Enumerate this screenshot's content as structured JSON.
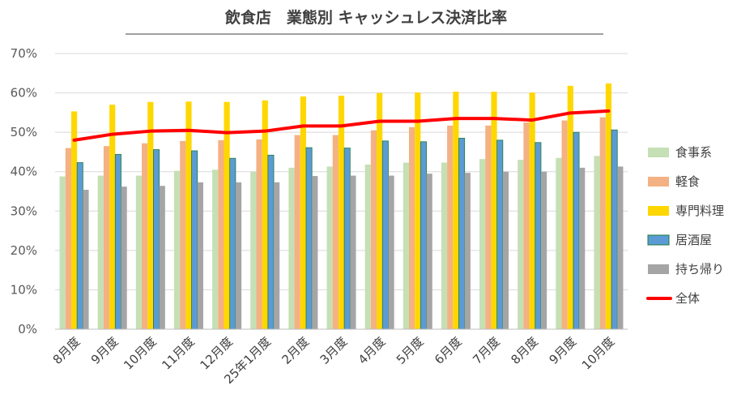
{
  "chart_data": {
    "type": "bar",
    "title": "飲食店　業態別 キャッシュレス決済比率",
    "categories": [
      "8月度",
      "9月度",
      "10月度",
      "11月度",
      "12月度",
      "25年1月度",
      "2月度",
      "3月度",
      "4月度",
      "5月度",
      "6月度",
      "7月度",
      "8月度",
      "9月度",
      "10月度"
    ],
    "ylim": [
      0,
      70
    ],
    "yticks": [
      "0%",
      "10%",
      "20%",
      "30%",
      "40%",
      "50%",
      "60%",
      "70%"
    ],
    "grid": true,
    "legend_position": "right",
    "series": [
      {
        "name": "食事系",
        "type": "bar",
        "color": "#c5e0b4",
        "values": [
          38.8,
          39.0,
          39.0,
          40.2,
          40.5,
          40.0,
          41.0,
          41.3,
          41.8,
          42.3,
          42.3,
          43.2,
          43.0,
          43.5,
          44.0
        ]
      },
      {
        "name": "軽食",
        "type": "bar",
        "color": "#f4b183",
        "values": [
          46.0,
          46.5,
          47.2,
          47.8,
          48.0,
          48.2,
          49.3,
          49.3,
          50.5,
          51.3,
          51.7,
          51.7,
          52.5,
          53.0,
          53.8
        ]
      },
      {
        "name": "専門料理",
        "type": "bar",
        "color": "#ffd700",
        "values": [
          55.3,
          57.0,
          57.7,
          57.8,
          57.7,
          58.1,
          59.1,
          59.3,
          60.0,
          60.1,
          60.3,
          60.3,
          60.1,
          61.8,
          62.4
        ]
      },
      {
        "name": "居酒屋",
        "type": "bar",
        "color": "#5b9bd5",
        "stroke": "#1e7b3c",
        "values": [
          42.3,
          44.4,
          45.6,
          45.3,
          43.4,
          44.2,
          46.1,
          46.0,
          47.8,
          47.6,
          48.5,
          48.0,
          47.4,
          50.0,
          50.6
        ]
      },
      {
        "name": "持ち帰り",
        "type": "bar",
        "color": "#a5a5a5",
        "values": [
          35.4,
          36.2,
          36.4,
          37.3,
          37.3,
          37.3,
          38.9,
          39.0,
          39.0,
          39.5,
          39.7,
          40.0,
          40.0,
          41.0,
          41.3
        ]
      },
      {
        "name": "全体",
        "type": "line",
        "color": "#ff0000",
        "values": [
          48.0,
          49.5,
          50.3,
          50.5,
          49.9,
          50.3,
          51.6,
          51.6,
          52.8,
          52.8,
          53.5,
          53.5,
          53.1,
          54.9,
          55.4
        ]
      }
    ]
  }
}
